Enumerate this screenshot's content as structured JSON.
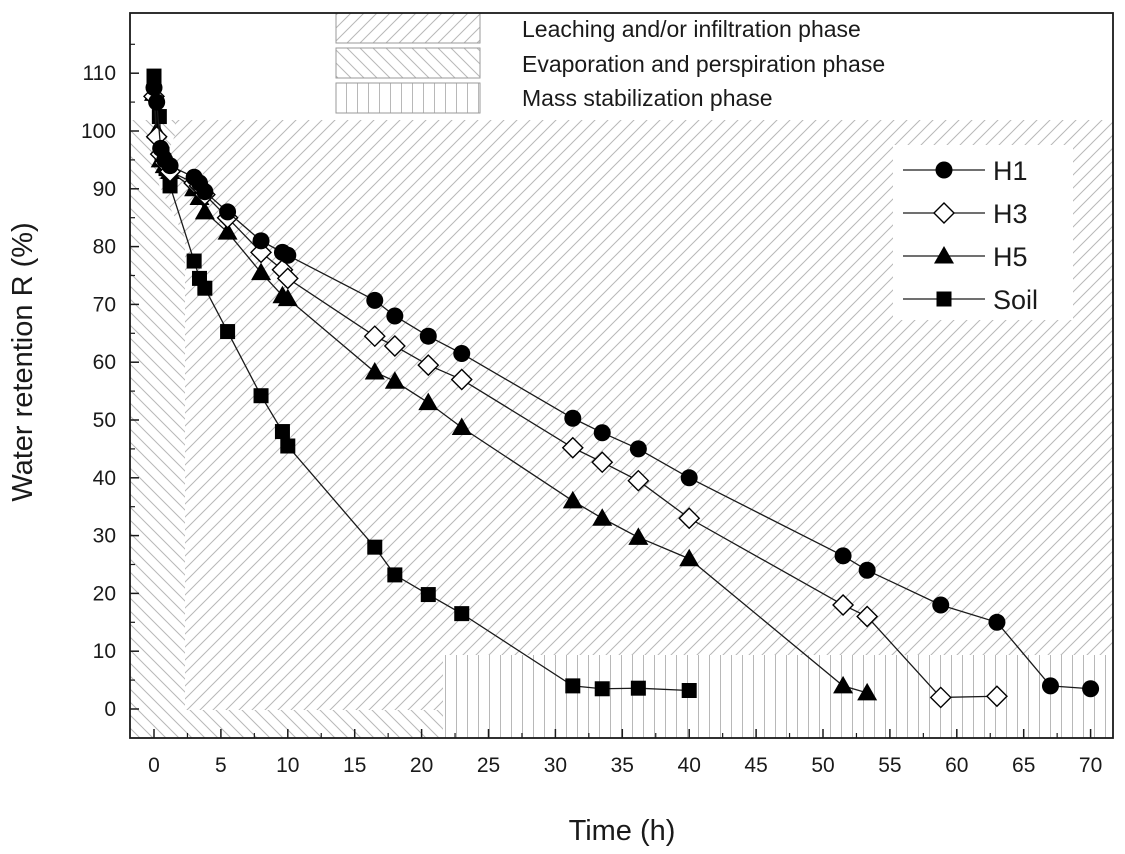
{
  "chart_data": {
    "type": "line",
    "xlabel": "Time (h)",
    "ylabel": "Water retention R (%)",
    "xlim": [
      -1.5,
      72.5
    ],
    "ylim": [
      -5,
      122
    ],
    "xticks": [
      0,
      5,
      10,
      15,
      20,
      25,
      30,
      35,
      40,
      45,
      50,
      55,
      60,
      65,
      70
    ],
    "yticks": [
      0,
      10,
      20,
      30,
      40,
      50,
      60,
      70,
      80,
      90,
      100,
      110
    ],
    "phases": [
      {
        "name": "Leaching and/or infiltration phase",
        "pattern": "hatch-back"
      },
      {
        "name": "Evaporation and perspiration phase",
        "pattern": "hatch-fwd"
      },
      {
        "name": "Mass stabilization phase",
        "pattern": "hatch-vert"
      }
    ],
    "legend_position": "top-right",
    "series": [
      {
        "name": "H1",
        "marker": "circle-filled",
        "x": [
          0,
          0.2,
          0.5,
          0.8,
          1.2,
          3,
          3.4,
          3.8,
          5.5,
          8,
          9.6,
          10,
          16.5,
          18,
          20.5,
          23,
          31.3,
          33.5,
          36.2,
          40,
          51.5,
          53.3,
          58.8,
          63,
          67,
          70
        ],
        "y": [
          107.5,
          105,
          97,
          95,
          94,
          92,
          91,
          89.5,
          86,
          81,
          79,
          78.5,
          70.7,
          68,
          64.5,
          61.5,
          50.3,
          47.8,
          45,
          40,
          26.5,
          24,
          18,
          15,
          4,
          3.5
        ]
      },
      {
        "name": "H3",
        "marker": "diamond-open",
        "x": [
          0,
          0.2,
          0.5,
          0.8,
          1.2,
          3,
          3.4,
          3.8,
          5.5,
          8,
          9.6,
          10,
          16.5,
          18,
          20.5,
          23,
          31.3,
          33.5,
          36.2,
          40,
          51.5,
          53.3,
          58.8,
          63
        ],
        "y": [
          106,
          99,
          96,
          94.5,
          93,
          91,
          90.5,
          89,
          85,
          79,
          76,
          74.5,
          64.5,
          62.8,
          59.5,
          57,
          45.2,
          42.7,
          39.5,
          33,
          18,
          16,
          2,
          2.2
        ]
      },
      {
        "name": "H5",
        "marker": "triangle-filled",
        "x": [
          0,
          0.2,
          0.5,
          0.8,
          1.2,
          3,
          3.4,
          3.8,
          5.5,
          8,
          9.6,
          10,
          16.5,
          18,
          20.5,
          23,
          31.3,
          33.5,
          36.2,
          40,
          51.5,
          53.3
        ],
        "y": [
          106.5,
          100,
          95,
          94,
          93,
          90,
          88.5,
          86,
          82.5,
          75.5,
          71.5,
          71,
          58.3,
          56.7,
          53,
          48.7,
          36,
          33,
          29.7,
          26,
          4,
          2.8
        ]
      },
      {
        "name": "Soil",
        "marker": "square-filled",
        "x": [
          0,
          0.4,
          0.6,
          0.9,
          1.2,
          3,
          3.4,
          3.8,
          5.5,
          8,
          9.6,
          10,
          16.5,
          18,
          20.5,
          23,
          31.3,
          33.5,
          36.2,
          40
        ],
        "y": [
          109.5,
          102.5,
          96,
          93.5,
          90.5,
          77.5,
          74.5,
          72.8,
          65.3,
          54.2,
          48,
          45.5,
          28,
          23.2,
          19.8,
          16.5,
          4,
          3.5,
          3.6,
          3.2
        ]
      }
    ]
  }
}
